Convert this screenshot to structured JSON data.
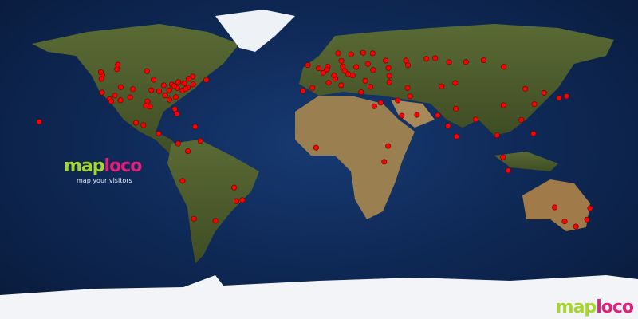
{
  "brand": {
    "part1": "map",
    "part2": "loco",
    "tagline": "map your visitors"
  },
  "colors": {
    "ocean": "#0f2a58",
    "land": "#4f5a2c",
    "desert": "#a88a5a",
    "ice": "#f2f4f8",
    "dot": "#ff0000",
    "brand_green": "#a6d62e",
    "brand_pink": "#e0207a"
  },
  "projection": "equirectangular",
  "visitors": [
    [
      47.6,
      -122.3
    ],
    [
      45.5,
      -122.7
    ],
    [
      37.8,
      -122.4
    ],
    [
      34.0,
      -118.2
    ],
    [
      32.7,
      -117.2
    ],
    [
      33.4,
      -112.0
    ],
    [
      39.7,
      -105.0
    ],
    [
      40.8,
      -111.9
    ],
    [
      32.8,
      -96.8
    ],
    [
      29.8,
      -95.4
    ],
    [
      41.9,
      -87.6
    ],
    [
      40.7,
      -74.0
    ],
    [
      42.4,
      -71.0
    ],
    [
      33.7,
      -84.4
    ],
    [
      25.8,
      -80.2
    ],
    [
      43.7,
      -79.4
    ],
    [
      45.5,
      -73.6
    ],
    [
      45.0,
      -93.3
    ],
    [
      51.0,
      -114.0
    ],
    [
      49.3,
      -123.1
    ],
    [
      53.5,
      -113.5
    ],
    [
      49.9,
      -97.1
    ],
    [
      19.4,
      -99.1
    ],
    [
      20.7,
      -103.3
    ],
    [
      21.3,
      -157.8
    ],
    [
      38.9,
      -77.0
    ],
    [
      39.9,
      -75.2
    ],
    [
      42.3,
      -83.0
    ],
    [
      39.1,
      -84.5
    ],
    [
      36.2,
      -86.8
    ],
    [
      35.2,
      -80.8
    ],
    [
      30.3,
      -97.7
    ],
    [
      38.6,
      -90.2
    ],
    [
      39.1,
      -94.6
    ],
    [
      44.9,
      -63.6
    ],
    [
      46.8,
      -71.2
    ],
    [
      36.1,
      -115.2
    ],
    [
      35.1,
      -106.6
    ],
    [
      28.5,
      -81.4
    ],
    [
      40.4,
      -80.0
    ],
    [
      43.0,
      -76.1
    ],
    [
      41.5,
      -81.7
    ],
    [
      18.5,
      -69.9
    ],
    [
      9.0,
      -79.5
    ],
    [
      14.6,
      -90.5
    ],
    [
      4.7,
      -74.0
    ],
    [
      -12.0,
      -77.0
    ],
    [
      -23.5,
      -46.6
    ],
    [
      -22.9,
      -43.2
    ],
    [
      -34.6,
      -58.4
    ],
    [
      -33.4,
      -70.6
    ],
    [
      -15.8,
      -47.9
    ],
    [
      10.5,
      -66.9
    ],
    [
      51.5,
      -0.1
    ],
    [
      48.9,
      2.4
    ],
    [
      52.5,
      13.4
    ],
    [
      40.4,
      -3.7
    ],
    [
      38.7,
      -9.1
    ],
    [
      41.9,
      12.5
    ],
    [
      59.3,
      18.1
    ],
    [
      59.9,
      10.8
    ],
    [
      60.2,
      24.9
    ],
    [
      55.8,
      37.6
    ],
    [
      52.2,
      21.0
    ],
    [
      50.5,
      30.5
    ],
    [
      41.0,
      29.0
    ],
    [
      38.0,
      23.7
    ],
    [
      52.4,
      4.9
    ],
    [
      48.2,
      16.4
    ],
    [
      50.1,
      14.4
    ],
    [
      47.5,
      19.0
    ],
    [
      44.4,
      26.1
    ],
    [
      53.3,
      -6.3
    ],
    [
      55.7,
      12.6
    ],
    [
      59.9,
      30.3
    ],
    [
      53.9,
      27.6
    ],
    [
      45.5,
      9.2
    ],
    [
      50.8,
      4.4
    ],
    [
      47.4,
      8.5
    ],
    [
      43.3,
      5.4
    ],
    [
      56.8,
      60.6
    ],
    [
      55.0,
      82.9
    ],
    [
      55.8,
      49.1
    ],
    [
      53.2,
      50.2
    ],
    [
      56.0,
      92.9
    ],
    [
      52.3,
      104.3
    ],
    [
      54.9,
      73.4
    ],
    [
      57.2,
      65.5
    ],
    [
      51.7,
      39.2
    ],
    [
      47.2,
      39.7
    ],
    [
      43.6,
      39.7
    ],
    [
      35.7,
      51.4
    ],
    [
      24.7,
      46.7
    ],
    [
      25.2,
      55.3
    ],
    [
      32.0,
      34.8
    ],
    [
      30.0,
      31.2
    ],
    [
      33.3,
      44.4
    ],
    [
      40.4,
      49.9
    ],
    [
      28.6,
      77.2
    ],
    [
      19.0,
      72.8
    ],
    [
      13.0,
      77.6
    ],
    [
      24.9,
      67.0
    ],
    [
      39.9,
      116.4
    ],
    [
      31.2,
      121.5
    ],
    [
      22.3,
      114.2
    ],
    [
      35.7,
      139.7
    ],
    [
      34.7,
      135.5
    ],
    [
      37.6,
      127.0
    ],
    [
      13.7,
      100.5
    ],
    [
      1.3,
      103.8
    ],
    [
      -6.2,
      106.8
    ],
    [
      14.6,
      121.0
    ],
    [
      43.2,
      76.9
    ],
    [
      41.3,
      69.2
    ],
    [
      22.6,
      88.4
    ],
    [
      30.6,
      104.1
    ],
    [
      6.7,
      -1.6
    ],
    [
      7.6,
      39.0
    ],
    [
      -1.3,
      36.8
    ],
    [
      -33.9,
      151.2
    ],
    [
      -37.8,
      145.0
    ],
    [
      -27.5,
      153.0
    ],
    [
      -34.9,
      138.6
    ],
    [
      -27.0,
      133.0
    ]
  ]
}
